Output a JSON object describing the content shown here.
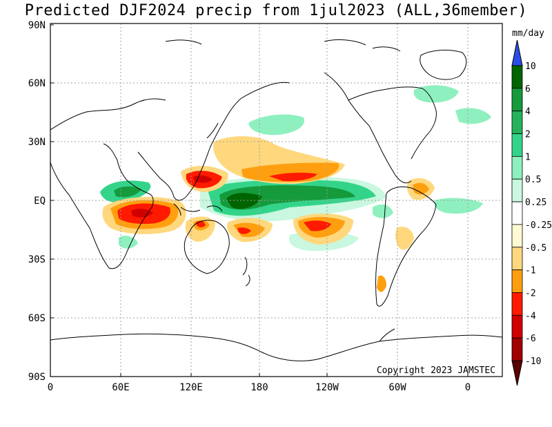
{
  "title": "Predicted DJF2024 precip from 1jul2023 (ALL,36member)",
  "units_label": "mm/day",
  "copyright": "Copyright 2023 JAMSTEC",
  "axes": {
    "lat_labels": [
      "90N",
      "60N",
      "30N",
      "EQ",
      "30S",
      "60S",
      "90S"
    ],
    "lon_labels": [
      "0",
      "60E",
      "120E",
      "180",
      "120W",
      "60W",
      "0"
    ]
  },
  "colorbar": {
    "labels": [
      "10",
      "6",
      "4",
      "2",
      "1",
      "0.5",
      "0.25",
      "-0.25",
      "-0.5",
      "-1",
      "-2",
      "-4",
      "-6",
      "-10"
    ],
    "colors": {
      "over": "#2a4ee8",
      "pos": [
        "#006400",
        "#159a3c",
        "#24b35a",
        "#33d48a",
        "#8ff0bf",
        "#c9f7df"
      ],
      "neutral": "#ffffff",
      "neg": [
        "#fffad2",
        "#ffd87e",
        "#ff9f10",
        "#ff1a00",
        "#d00000",
        "#a00000"
      ],
      "under": "#5a0000"
    }
  },
  "colors": {
    "grid": "#a0a0a0",
    "coast": "#000000"
  }
}
